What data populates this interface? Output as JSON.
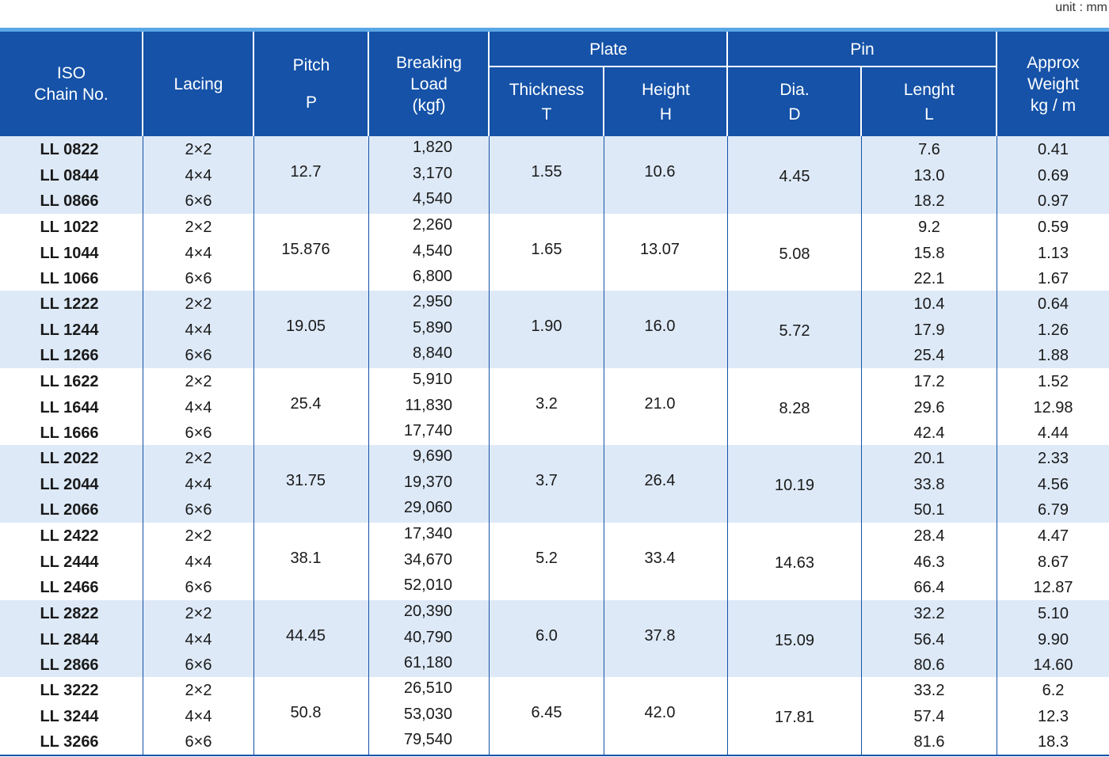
{
  "unit_label": "unit : mm",
  "header": {
    "iso": [
      "ISO",
      "Chain No."
    ],
    "lacing": "Lacing",
    "pitch": [
      "Pitch",
      "P"
    ],
    "breaking": [
      "Breaking",
      "Load",
      "(kgf)"
    ],
    "plate": "Plate",
    "thickness": [
      "Thickness",
      "T"
    ],
    "height": [
      "Height",
      "H"
    ],
    "pin": "Pin",
    "dia": [
      "Dia.",
      "D"
    ],
    "length": [
      "Lenght",
      "L"
    ],
    "weight": [
      "Approx",
      "Weight",
      "kg / m"
    ]
  },
  "groups": [
    {
      "pitch": "12.7",
      "thickness": "1.55",
      "height": "10.6",
      "dia": "4.45",
      "rows": [
        [
          "LL 0822",
          "2×2",
          "1,820",
          "7.6",
          "0.41"
        ],
        [
          "LL 0844",
          "4×4",
          "3,170",
          "13.0",
          "0.69"
        ],
        [
          "LL 0866",
          "6×6",
          "4,540",
          "18.2",
          "0.97"
        ]
      ]
    },
    {
      "pitch": "15.876",
      "thickness": "1.65",
      "height": "13.07",
      "dia": "5.08",
      "rows": [
        [
          "LL 1022",
          "2×2",
          "2,260",
          "9.2",
          "0.59"
        ],
        [
          "LL 1044",
          "4×4",
          "4,540",
          "15.8",
          "1.13"
        ],
        [
          "LL 1066",
          "6×6",
          "6,800",
          "22.1",
          "1.67"
        ]
      ]
    },
    {
      "pitch": "19.05",
      "thickness": "1.90",
      "height": "16.0",
      "dia": "5.72",
      "rows": [
        [
          "LL 1222",
          "2×2",
          "2,950",
          "10.4",
          "0.64"
        ],
        [
          "LL 1244",
          "4×4",
          "5,890",
          "17.9",
          "1.26"
        ],
        [
          "LL 1266",
          "6×6",
          "8,840",
          "25.4",
          "1.88"
        ]
      ]
    },
    {
      "pitch": "25.4",
      "thickness": "3.2",
      "height": "21.0",
      "dia": "8.28",
      "rows": [
        [
          "LL 1622",
          "2×2",
          "5,910",
          "17.2",
          "1.52"
        ],
        [
          "LL 1644",
          "4×4",
          "11,830",
          "29.6",
          "12.98"
        ],
        [
          "LL 1666",
          "6×6",
          "17,740",
          "42.4",
          "4.44"
        ]
      ]
    },
    {
      "pitch": "31.75",
      "thickness": "3.7",
      "height": "26.4",
      "dia": "10.19",
      "rows": [
        [
          "LL 2022",
          "2×2",
          "9,690",
          "20.1",
          "2.33"
        ],
        [
          "LL 2044",
          "4×4",
          "19,370",
          "33.8",
          "4.56"
        ],
        [
          "LL 2066",
          "6×6",
          "29,060",
          "50.1",
          "6.79"
        ]
      ]
    },
    {
      "pitch": "38.1",
      "thickness": "5.2",
      "height": "33.4",
      "dia": "14.63",
      "rows": [
        [
          "LL 2422",
          "2×2",
          "17,340",
          "28.4",
          "4.47"
        ],
        [
          "LL 2444",
          "4×4",
          "34,670",
          "46.3",
          "8.67"
        ],
        [
          "LL 2466",
          "6×6",
          "52,010",
          "66.4",
          "12.87"
        ]
      ]
    },
    {
      "pitch": "44.45",
      "thickness": "6.0",
      "height": "37.8",
      "dia": "15.09",
      "rows": [
        [
          "LL 2822",
          "2×2",
          "20,390",
          "32.2",
          "5.10"
        ],
        [
          "LL 2844",
          "4×4",
          "40,790",
          "56.4",
          "9.90"
        ],
        [
          "LL 2866",
          "6×6",
          "61,180",
          "80.6",
          "14.60"
        ]
      ]
    },
    {
      "pitch": "50.8",
      "thickness": "6.45",
      "height": "42.0",
      "dia": "17.81",
      "rows": [
        [
          "LL 3222",
          "2×2",
          "26,510",
          "33.2",
          "6.2"
        ],
        [
          "LL 3244",
          "4×4",
          "53,030",
          "57.4",
          "12.3"
        ],
        [
          "LL 3266",
          "6×6",
          "79,540",
          "81.6",
          "18.3"
        ]
      ]
    }
  ]
}
